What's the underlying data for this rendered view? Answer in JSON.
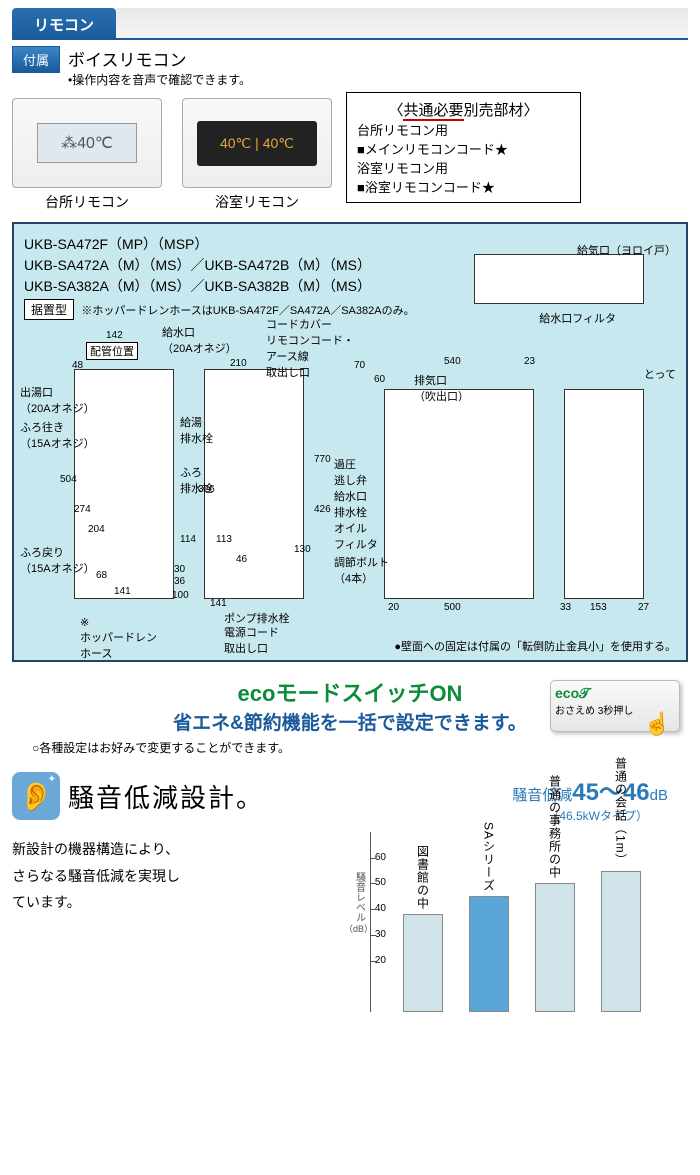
{
  "header": {
    "tab": "リモコン"
  },
  "attached": {
    "badge": "付属",
    "title": "ボイスリモコン",
    "sub": "•操作内容を音声で確認できます。"
  },
  "remotes": {
    "kitchen": {
      "label": "台所リモコン",
      "disp": "⁂40℃"
    },
    "bath": {
      "label": "浴室リモコン",
      "disp": "40℃ | 40℃"
    }
  },
  "parts_box": {
    "title_prefix": "〈",
    "title_u": "共通必要",
    "title_suffix": "別売部材〉",
    "lines": [
      "台所リモコン用",
      "メインリモコンコード★",
      "浴室リモコン用",
      "浴室リモコンコード★"
    ]
  },
  "diagram": {
    "models": [
      "UKB-SA472F（MP）（MSP）",
      "UKB-SA472A（M）（MS）／UKB-SA472B（M）（MS）",
      "UKB-SA382A（M）（MS）／UKB-SA382B（M）（MS）"
    ],
    "type_badge": "据置型",
    "hopper_note": "※ホッパードレンホースはUKB-SA472F／SA472A／SA382Aのみ。",
    "labels": {
      "haikan": "配管位置",
      "kyusuikou": "給水口\n（20Aオネジ）",
      "cordcover": "コードカバー\nリモコンコード・\nアース線\n取出し口",
      "deyu": "出湯口\n（20Aオネジ）",
      "furoiki": "ふろ往き\n（15Aオネジ）",
      "furomodori": "ふろ戻り\n（15Aオネジ）",
      "kyuto_hai": "給湯\n排水栓",
      "furo_hai": "ふろ\n排水栓",
      "pump_hai": "ポンプ排水栓",
      "dengen": "電源コード\n取出し口",
      "hopper": "※\nホッパードレン\nホース",
      "kaatsu": "過圧\n逃し弁",
      "kyusui_hai": "給水口\n排水栓",
      "oil": "オイル\nフィルタ",
      "bolt": "調節ボルト\n（4本）",
      "haiki": "排気口\n（吹出口）",
      "kyuki": "給気口（ヨロイ戸）",
      "kyusui_filter": "給水口フィルタ",
      "totte": "とって"
    },
    "dims": {
      "d48": "48",
      "d142": "142",
      "d210": "210",
      "d70": "70",
      "d60": "60",
      "d540": "540",
      "d23": "23",
      "d770": "770",
      "d426": "426",
      "d504": "504",
      "d274": "274",
      "d204": "204",
      "d68": "68",
      "d141a": "141",
      "d141b": "141",
      "d326": "326",
      "d114": "114",
      "d30": "30",
      "d36": "36",
      "d100": "100",
      "d113": "113",
      "d46": "46",
      "d130": "130",
      "d500": "500",
      "d20": "20",
      "d33": "33",
      "d153": "153",
      "d27": "27"
    },
    "footnote": "●壁面への固定は付属の「転倒防止金具小」を使用する。"
  },
  "eco": {
    "title": "ecoモードスイッチON",
    "sub": "省エネ&節約機能を一括で設定できます。",
    "note": "○各種設定はお好みで変更することができます。",
    "btn_logo": "eco𝒯",
    "btn_text": "おさえめ 3秒押し"
  },
  "noise": {
    "title": "騒音低減設計。",
    "body1": "新設計の機器構造により、",
    "body2": "さらなる騒音低減を実現し",
    "body3": "ています。",
    "db_label": "騒音低減",
    "db_value": "45〜46",
    "db_unit": "dB",
    "db_sub": "（46.5kWタイプ）",
    "chart": {
      "y_label": "騒音レベル",
      "y_unit": "（dB）",
      "ymax": 70,
      "ticks": [
        20,
        30,
        40,
        50,
        60
      ],
      "bars": [
        {
          "label": "図書館の中",
          "value": 38,
          "color": "#cfe3e8"
        },
        {
          "label": "SAシリーズ",
          "value": 45,
          "color": "#5aa6d8"
        },
        {
          "label": "普通の事務所の中",
          "value": 50,
          "color": "#cfe3e8"
        },
        {
          "label": "普通の会話（1m）",
          "value": 55,
          "color": "#cfe3e8"
        }
      ]
    }
  },
  "colors": {
    "blue": "#1a5a9a",
    "green": "#0a8c3a",
    "diagram_bg": "#c8e8ef"
  }
}
